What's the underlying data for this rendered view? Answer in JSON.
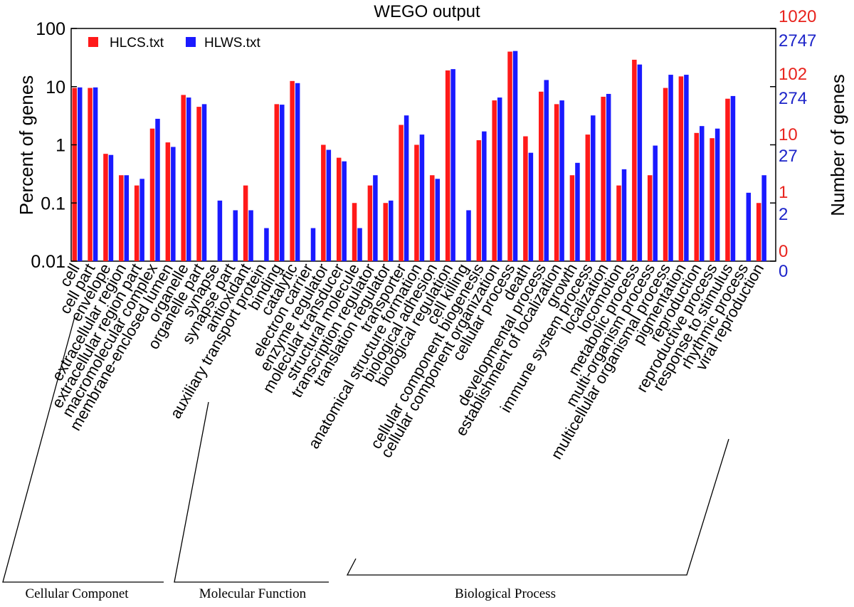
{
  "chart_data": {
    "type": "bar",
    "title": "WEGO output",
    "ylabel_left": "Percent of genes",
    "ylabel_right": "Number of genes",
    "yscale": "log",
    "ylim": [
      0.01,
      100
    ],
    "left_ticks": [
      "100",
      "10",
      "1",
      "0.1",
      "0.01"
    ],
    "right_ticks_series1": [
      "1020",
      "102",
      "10",
      "1",
      "0"
    ],
    "right_ticks_series2": [
      "2747",
      "274",
      "27",
      "2",
      "0"
    ],
    "legend_position": "top-left",
    "colors": {
      "HLCS.txt": "#ff1a1a",
      "HLWS.txt": "#1a1aff",
      "right_red": "#e8231d",
      "right_blue": "#1d24c9"
    },
    "categories": [
      "cell",
      "cell part",
      "envelope",
      "extracellular region",
      "extracellular region part",
      "macromolecular complex",
      "membrane-enclosed lumen",
      "organelle",
      "organelle part",
      "synapse",
      "synapse part",
      "antioxidant",
      "auxiliary transport protein",
      "binding",
      "catalytic",
      "electron carrier",
      "enzyme regulator",
      "molecular transducer",
      "structural molecule",
      "transcription regulator",
      "translation regulator",
      "transporter",
      "anatomical structure formation",
      "biological adhesion",
      "biological regulation",
      "cell killing",
      "cellular component biogenesis",
      "cellular component organization",
      "cellular process",
      "death",
      "developmental process",
      "establishment of localization",
      "growth",
      "immune system process",
      "localization",
      "locomotion",
      "metabolic process",
      "multi-organism process",
      "multicellular organismal process",
      "pigmentation",
      "reproduction",
      "reproductive process",
      "response to stimulus",
      "rhythmic process",
      "viral reproduction"
    ],
    "series": [
      {
        "name": "HLCS.txt",
        "values": [
          9.5,
          9.5,
          0.7,
          0.3,
          0.2,
          1.9,
          1.1,
          7.2,
          4.5,
          null,
          null,
          0.2,
          null,
          5.0,
          12.5,
          null,
          1.0,
          0.6,
          0.1,
          0.2,
          0.1,
          2.2,
          1.0,
          0.3,
          19,
          null,
          1.2,
          5.8,
          40,
          1.4,
          8.2,
          5.0,
          0.3,
          1.5,
          6.7,
          0.2,
          29,
          0.3,
          9.5,
          15,
          1.6,
          1.3,
          6.2,
          null,
          0.1
        ]
      },
      {
        "name": "HLWS.txt",
        "values": [
          9.7,
          9.7,
          0.67,
          0.3,
          0.26,
          2.8,
          0.92,
          6.5,
          5.0,
          0.11,
          0.075,
          0.075,
          0.037,
          4.9,
          11.5,
          0.037,
          0.82,
          0.52,
          0.037,
          0.3,
          0.11,
          3.2,
          1.5,
          0.26,
          20,
          0.075,
          1.7,
          6.5,
          41,
          0.73,
          13,
          5.8,
          0.49,
          3.2,
          7.5,
          0.38,
          24,
          0.97,
          16,
          16,
          2.1,
          1.9,
          6.9,
          0.15,
          0.3
        ]
      }
    ],
    "groups": [
      {
        "label": "Cellular Componet",
        "start": 0,
        "end": 8
      },
      {
        "label": "Molecular Function",
        "start": 9,
        "end": 21
      },
      {
        "label": "Biological Process",
        "start": 22,
        "end": 44
      }
    ]
  }
}
